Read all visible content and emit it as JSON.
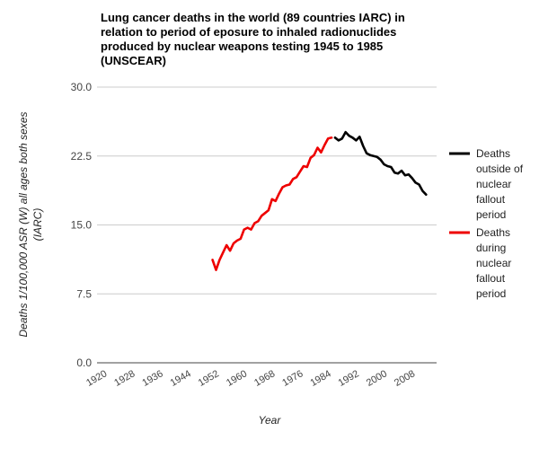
{
  "chart_data": {
    "type": "line",
    "title_lines": [
      "Lung cancer deaths in the world (89 countries IARC) in",
      "relation to period of eposure to inhaled radionuclides",
      "produced by nuclear weapons testing 1945 to 1985",
      "(UNSCEAR)"
    ],
    "xlabel": "Year",
    "ylabel_lines": [
      "Deaths 1/100,000 ASR (W) all ages both sexes",
      "(IARC)"
    ],
    "xlim": [
      1918,
      2015
    ],
    "ylim": [
      0,
      30
    ],
    "x_ticks": [
      "1920",
      "1928",
      "1936",
      "1944",
      "1952",
      "1960",
      "1968",
      "1976",
      "1984",
      "1992",
      "2000",
      "2008"
    ],
    "y_ticks": [
      "0.0",
      "7.5",
      "15.0",
      "22.5",
      "30.0"
    ],
    "grid": true,
    "legend_position": "right",
    "series": [
      {
        "name_lines": [
          "Deaths",
          "outside of",
          "nuclear",
          "fallout",
          "period"
        ],
        "color": "#000000",
        "points": [
          [
            1986,
            24.5
          ],
          [
            1987,
            24.2
          ],
          [
            1988,
            24.4
          ],
          [
            1989,
            25.1
          ],
          [
            1990,
            24.7
          ],
          [
            1991,
            24.5
          ],
          [
            1992,
            24.2
          ],
          [
            1993,
            24.6
          ],
          [
            1994,
            23.6
          ],
          [
            1995,
            22.8
          ],
          [
            1996,
            22.6
          ],
          [
            1997,
            22.5
          ],
          [
            1998,
            22.4
          ],
          [
            1999,
            22.1
          ],
          [
            2000,
            21.6
          ],
          [
            2001,
            21.4
          ],
          [
            2002,
            21.3
          ],
          [
            2003,
            20.7
          ],
          [
            2004,
            20.6
          ],
          [
            2005,
            20.9
          ],
          [
            2006,
            20.4
          ],
          [
            2007,
            20.5
          ],
          [
            2008,
            20.1
          ],
          [
            2009,
            19.6
          ],
          [
            2010,
            19.4
          ],
          [
            2011,
            18.7
          ],
          [
            2012,
            18.3
          ]
        ]
      },
      {
        "name_lines": [
          "Deaths",
          "during",
          "nuclear",
          "fallout",
          "period"
        ],
        "color": "#ee0000",
        "points": [
          [
            1951,
            11.2
          ],
          [
            1952,
            10.1
          ],
          [
            1953,
            11.2
          ],
          [
            1954,
            12.0
          ],
          [
            1955,
            12.8
          ],
          [
            1956,
            12.2
          ],
          [
            1957,
            13.0
          ],
          [
            1958,
            13.3
          ],
          [
            1959,
            13.5
          ],
          [
            1960,
            14.5
          ],
          [
            1961,
            14.7
          ],
          [
            1962,
            14.5
          ],
          [
            1963,
            15.2
          ],
          [
            1964,
            15.4
          ],
          [
            1965,
            16.0
          ],
          [
            1966,
            16.3
          ],
          [
            1967,
            16.6
          ],
          [
            1968,
            17.8
          ],
          [
            1969,
            17.6
          ],
          [
            1970,
            18.4
          ],
          [
            1971,
            19.1
          ],
          [
            1972,
            19.3
          ],
          [
            1973,
            19.4
          ],
          [
            1974,
            20.0
          ],
          [
            1975,
            20.2
          ],
          [
            1976,
            20.8
          ],
          [
            1977,
            21.4
          ],
          [
            1978,
            21.3
          ],
          [
            1979,
            22.3
          ],
          [
            1980,
            22.6
          ],
          [
            1981,
            23.4
          ],
          [
            1982,
            22.9
          ],
          [
            1983,
            23.7
          ],
          [
            1984,
            24.4
          ],
          [
            1985,
            24.5
          ]
        ]
      }
    ]
  }
}
